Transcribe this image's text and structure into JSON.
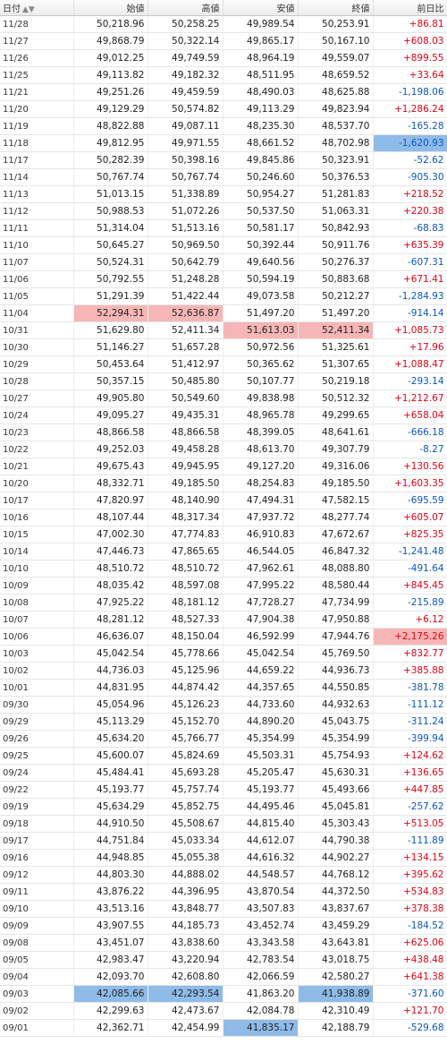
{
  "headers": [
    "日付",
    "始値",
    "高値",
    "安値",
    "終値",
    "前日比"
  ],
  "sort_icon": "sort-arrows-icon",
  "colors": {
    "up": "#e60012",
    "down": "#0a56c2",
    "highlight_red": "#f7b6b6",
    "highlight_blue": "#8fbbe8"
  },
  "rows": [
    {
      "date": "11/28",
      "open": "50,218.96",
      "high": "50,258.25",
      "low": "49,989.54",
      "close": "50,253.91",
      "change": "+86.81"
    },
    {
      "date": "11/27",
      "open": "49,868.79",
      "high": "50,322.14",
      "low": "49,865.17",
      "close": "50,167.10",
      "change": "+608.03"
    },
    {
      "date": "11/26",
      "open": "49,012.25",
      "high": "49,749.59",
      "low": "48,964.19",
      "close": "49,559.07",
      "change": "+899.55"
    },
    {
      "date": "11/25",
      "open": "49,113.82",
      "high": "49,182.32",
      "low": "48,511.95",
      "close": "48,659.52",
      "change": "+33.64"
    },
    {
      "date": "11/21",
      "open": "49,251.26",
      "high": "49,459.59",
      "low": "48,490.03",
      "close": "48,625.88",
      "change": "-1,198.06"
    },
    {
      "date": "11/20",
      "open": "49,129.29",
      "high": "50,574.82",
      "low": "49,113.29",
      "close": "49,823.94",
      "change": "+1,286.24"
    },
    {
      "date": "11/19",
      "open": "48,822.88",
      "high": "49,087.11",
      "low": "48,235.30",
      "close": "48,537.70",
      "change": "-165.28"
    },
    {
      "date": "11/18",
      "open": "49,812.95",
      "high": "49,971.55",
      "low": "48,661.52",
      "close": "48,702.98",
      "change": "-1,620.93",
      "hl": {
        "change": "blue"
      }
    },
    {
      "date": "11/17",
      "open": "50,282.39",
      "high": "50,398.16",
      "low": "49,845.86",
      "close": "50,323.91",
      "change": "-52.62"
    },
    {
      "date": "11/14",
      "open": "50,767.74",
      "high": "50,767.74",
      "low": "50,246.60",
      "close": "50,376.53",
      "change": "-905.30"
    },
    {
      "date": "11/13",
      "open": "51,013.15",
      "high": "51,338.89",
      "low": "50,954.27",
      "close": "51,281.83",
      "change": "+218.52"
    },
    {
      "date": "11/12",
      "open": "50,988.53",
      "high": "51,072.26",
      "low": "50,537.50",
      "close": "51,063.31",
      "change": "+220.38"
    },
    {
      "date": "11/11",
      "open": "51,314.04",
      "high": "51,513.16",
      "low": "50,581.17",
      "close": "50,842.93",
      "change": "-68.83"
    },
    {
      "date": "11/10",
      "open": "50,645.27",
      "high": "50,969.50",
      "low": "50,392.44",
      "close": "50,911.76",
      "change": "+635.39"
    },
    {
      "date": "11/07",
      "open": "50,524.31",
      "high": "50,642.79",
      "low": "49,640.56",
      "close": "50,276.37",
      "change": "-607.31"
    },
    {
      "date": "11/06",
      "open": "50,792.55",
      "high": "51,248.28",
      "low": "50,594.19",
      "close": "50,883.68",
      "change": "+671.41"
    },
    {
      "date": "11/05",
      "open": "51,291.39",
      "high": "51,422.44",
      "low": "49,073.58",
      "close": "50,212.27",
      "change": "-1,284.93"
    },
    {
      "date": "11/04",
      "open": "52,294.31",
      "high": "52,636.87",
      "low": "51,497.20",
      "close": "51,497.20",
      "change": "-914.14",
      "hl": {
        "open": "red",
        "high": "red"
      }
    },
    {
      "date": "10/31",
      "open": "51,629.80",
      "high": "52,411.34",
      "low": "51,613.03",
      "close": "52,411.34",
      "change": "+1,085.73",
      "hl": {
        "low": "red",
        "close": "red"
      }
    },
    {
      "date": "10/30",
      "open": "51,146.27",
      "high": "51,657.28",
      "low": "50,972.56",
      "close": "51,325.61",
      "change": "+17.96"
    },
    {
      "date": "10/29",
      "open": "50,453.64",
      "high": "51,412.97",
      "low": "50,365.62",
      "close": "51,307.65",
      "change": "+1,088.47"
    },
    {
      "date": "10/28",
      "open": "50,357.15",
      "high": "50,485.80",
      "low": "50,107.77",
      "close": "50,219.18",
      "change": "-293.14"
    },
    {
      "date": "10/27",
      "open": "49,905.80",
      "high": "50,549.60",
      "low": "49,838.98",
      "close": "50,512.32",
      "change": "+1,212.67"
    },
    {
      "date": "10/24",
      "open": "49,095.27",
      "high": "49,435.31",
      "low": "48,965.78",
      "close": "49,299.65",
      "change": "+658.04"
    },
    {
      "date": "10/23",
      "open": "48,866.58",
      "high": "48,866.58",
      "low": "48,399.05",
      "close": "48,641.61",
      "change": "-666.18"
    },
    {
      "date": "10/22",
      "open": "49,252.03",
      "high": "49,458.28",
      "low": "48,613.70",
      "close": "49,307.79",
      "change": "-8.27"
    },
    {
      "date": "10/21",
      "open": "49,675.43",
      "high": "49,945.95",
      "low": "49,127.20",
      "close": "49,316.06",
      "change": "+130.56"
    },
    {
      "date": "10/20",
      "open": "48,332.71",
      "high": "49,185.50",
      "low": "48,254.83",
      "close": "49,185.50",
      "change": "+1,603.35"
    },
    {
      "date": "10/17",
      "open": "47,820.97",
      "high": "48,140.90",
      "low": "47,494.31",
      "close": "47,582.15",
      "change": "-695.59"
    },
    {
      "date": "10/16",
      "open": "48,107.44",
      "high": "48,317.34",
      "low": "47,937.72",
      "close": "48,277.74",
      "change": "+605.07"
    },
    {
      "date": "10/15",
      "open": "47,002.30",
      "high": "47,774.83",
      "low": "46,910.83",
      "close": "47,672.67",
      "change": "+825.35"
    },
    {
      "date": "10/14",
      "open": "47,446.73",
      "high": "47,865.65",
      "low": "46,544.05",
      "close": "46,847.32",
      "change": "-1,241.48"
    },
    {
      "date": "10/10",
      "open": "48,510.72",
      "high": "48,510.72",
      "low": "47,962.61",
      "close": "48,088.80",
      "change": "-491.64"
    },
    {
      "date": "10/09",
      "open": "48,035.42",
      "high": "48,597.08",
      "low": "47,995.22",
      "close": "48,580.44",
      "change": "+845.45"
    },
    {
      "date": "10/08",
      "open": "47,925.22",
      "high": "48,181.12",
      "low": "47,728.27",
      "close": "47,734.99",
      "change": "-215.89"
    },
    {
      "date": "10/07",
      "open": "48,281.12",
      "high": "48,527.33",
      "low": "47,904.38",
      "close": "47,950.88",
      "change": "+6.12"
    },
    {
      "date": "10/06",
      "open": "46,636.07",
      "high": "48,150.04",
      "low": "46,592.99",
      "close": "47,944.76",
      "change": "+2,175.26",
      "hl": {
        "change": "red"
      }
    },
    {
      "date": "10/03",
      "open": "45,042.54",
      "high": "45,778.66",
      "low": "45,042.54",
      "close": "45,769.50",
      "change": "+832.77"
    },
    {
      "date": "10/02",
      "open": "44,736.03",
      "high": "45,125.96",
      "low": "44,659.22",
      "close": "44,936.73",
      "change": "+385.88"
    },
    {
      "date": "10/01",
      "open": "44,831.95",
      "high": "44,874.42",
      "low": "44,357.65",
      "close": "44,550.85",
      "change": "-381.78"
    },
    {
      "date": "09/30",
      "open": "45,054.96",
      "high": "45,126.23",
      "low": "44,733.60",
      "close": "44,932.63",
      "change": "-111.12"
    },
    {
      "date": "09/29",
      "open": "45,113.29",
      "high": "45,152.70",
      "low": "44,890.20",
      "close": "45,043.75",
      "change": "-311.24"
    },
    {
      "date": "09/26",
      "open": "45,634.20",
      "high": "45,766.77",
      "low": "45,354.99",
      "close": "45,354.99",
      "change": "-399.94"
    },
    {
      "date": "09/25",
      "open": "45,600.07",
      "high": "45,824.69",
      "low": "45,503.31",
      "close": "45,754.93",
      "change": "+124.62"
    },
    {
      "date": "09/24",
      "open": "45,484.41",
      "high": "45,693.28",
      "low": "45,205.47",
      "close": "45,630.31",
      "change": "+136.65"
    },
    {
      "date": "09/22",
      "open": "45,193.77",
      "high": "45,757.74",
      "low": "45,193.77",
      "close": "45,493.66",
      "change": "+447.85"
    },
    {
      "date": "09/19",
      "open": "45,634.29",
      "high": "45,852.75",
      "low": "44,495.46",
      "close": "45,045.81",
      "change": "-257.62"
    },
    {
      "date": "09/18",
      "open": "44,910.50",
      "high": "45,508.67",
      "low": "44,815.40",
      "close": "45,303.43",
      "change": "+513.05"
    },
    {
      "date": "09/17",
      "open": "44,751.84",
      "high": "45,033.34",
      "low": "44,612.07",
      "close": "44,790.38",
      "change": "-111.89"
    },
    {
      "date": "09/16",
      "open": "44,948.85",
      "high": "45,055.38",
      "low": "44,616.32",
      "close": "44,902.27",
      "change": "+134.15"
    },
    {
      "date": "09/12",
      "open": "44,803.30",
      "high": "44,888.02",
      "low": "44,548.57",
      "close": "44,768.12",
      "change": "+395.62"
    },
    {
      "date": "09/11",
      "open": "43,876.22",
      "high": "44,396.95",
      "low": "43,870.54",
      "close": "44,372.50",
      "change": "+534.83"
    },
    {
      "date": "09/10",
      "open": "43,513.16",
      "high": "43,848.77",
      "low": "43,507.83",
      "close": "43,837.67",
      "change": "+378.38"
    },
    {
      "date": "09/09",
      "open": "43,907.55",
      "high": "44,185.73",
      "low": "43,452.74",
      "close": "43,459.29",
      "change": "-184.52"
    },
    {
      "date": "09/08",
      "open": "43,451.07",
      "high": "43,838.60",
      "low": "43,343.58",
      "close": "43,643.81",
      "change": "+625.06"
    },
    {
      "date": "09/05",
      "open": "42,983.47",
      "high": "43,220.94",
      "low": "42,783.54",
      "close": "43,018.75",
      "change": "+438.48"
    },
    {
      "date": "09/04",
      "open": "42,093.70",
      "high": "42,608.80",
      "low": "42,066.59",
      "close": "42,580.27",
      "change": "+641.38"
    },
    {
      "date": "09/03",
      "open": "42,085.66",
      "high": "42,293.54",
      "low": "41,863.20",
      "close": "41,938.89",
      "change": "-371.60",
      "hl": {
        "open": "blue",
        "high": "blue",
        "close": "blue"
      }
    },
    {
      "date": "09/02",
      "open": "42,299.63",
      "high": "42,473.67",
      "low": "42,084.78",
      "close": "42,310.49",
      "change": "+121.70"
    },
    {
      "date": "09/01",
      "open": "42,362.71",
      "high": "42,454.99",
      "low": "41,835.17",
      "close": "42,188.79",
      "change": "-529.68",
      "hl": {
        "low": "blue"
      }
    }
  ]
}
